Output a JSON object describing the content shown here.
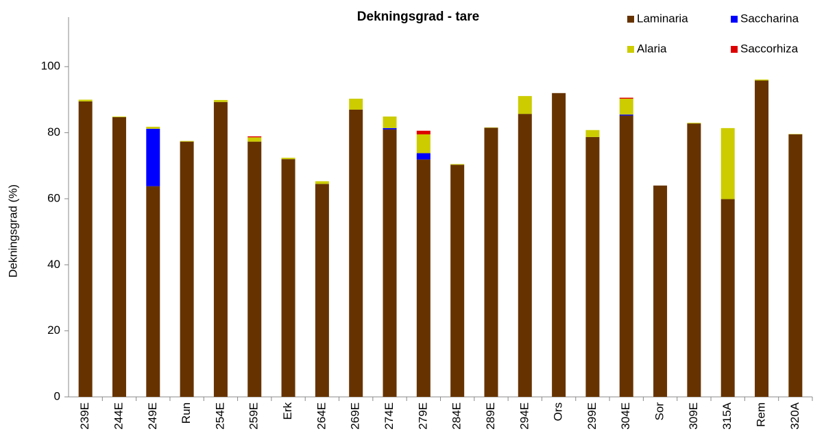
{
  "chart_data": {
    "type": "stacked_bar",
    "title": "Dekningsgrad - tare",
    "y_label": "Dekningsgrad  (%)",
    "categories": [
      "239E",
      "244E",
      "249E",
      "Run",
      "254E",
      "259E",
      "Erk",
      "264E",
      "269E",
      "274E",
      "279E",
      "284E",
      "289E",
      "294E",
      "Ors",
      "299E",
      "304E",
      "Sor",
      "309E",
      "315A",
      "Rem",
      "320A"
    ],
    "series": [
      {
        "name": "Laminaria",
        "color": "#663300",
        "values": [
          89.5,
          84.7,
          63.8,
          77.3,
          89.3,
          77.3,
          72,
          64.5,
          87,
          81,
          71.9,
          70.3,
          81.5,
          85.7,
          92,
          78.7,
          85.2,
          64,
          82.8,
          59.9,
          95.8,
          79.5
        ]
      },
      {
        "name": "Saccharina",
        "color": "#0000ff",
        "values": [
          0,
          0,
          17.4,
          0,
          0,
          0,
          0,
          0,
          0,
          0.4,
          1.9,
          0,
          0,
          0,
          0,
          0,
          0.3,
          0,
          0,
          0,
          0,
          0
        ]
      },
      {
        "name": "Alaria",
        "color": "#cccc00",
        "values": [
          0.5,
          0.2,
          0.6,
          0.2,
          0.6,
          1.3,
          0.4,
          0.8,
          3.3,
          3.5,
          5.7,
          0.2,
          0.1,
          5.4,
          0,
          2.1,
          4.8,
          0,
          0.2,
          21.5,
          0.3,
          0.1
        ]
      },
      {
        "name": "Saccorhiza",
        "color": "#dd0000",
        "values": [
          0,
          0,
          0,
          0,
          0,
          0.3,
          0,
          0,
          0,
          0,
          1.1,
          0,
          0,
          0,
          0,
          0,
          0.3,
          0,
          0,
          0,
          0,
          0
        ]
      }
    ],
    "ylim": [
      0,
      115
    ],
    "yticks": [
      0,
      20,
      40,
      60,
      80,
      100
    ],
    "legend": "top-right"
  }
}
